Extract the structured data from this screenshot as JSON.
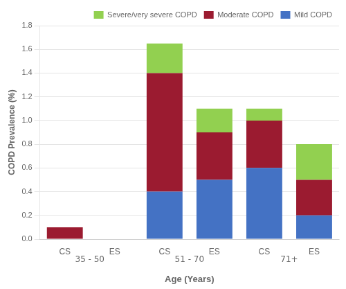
{
  "chart_data": {
    "type": "bar",
    "stacked": true,
    "groups": [
      {
        "label": "35 - 50",
        "categories": [
          "CS",
          "ES"
        ]
      },
      {
        "label": "51 - 70",
        "categories": [
          "CS",
          "ES"
        ]
      },
      {
        "label": "71+",
        "categories": [
          "CS",
          "ES"
        ]
      }
    ],
    "series": [
      {
        "name": "Mild COPD",
        "color": "#4472C4",
        "values": [
          0.0,
          0.0,
          0.4,
          0.5,
          0.6,
          0.2
        ]
      },
      {
        "name": "Moderate COPD",
        "color": "#9B1B30",
        "values": [
          0.1,
          0.0,
          1.0,
          0.4,
          0.4,
          0.3
        ]
      },
      {
        "name": "Severe/very severe COPD",
        "color": "#92D050",
        "values": [
          0.0,
          0.0,
          0.25,
          0.2,
          0.1,
          0.3
        ]
      }
    ],
    "xlabel": "Age (Years)",
    "ylabel": "COPD Prevalence (%)",
    "ylim": [
      0,
      1.8
    ],
    "yticks": [
      {
        "value": 0.0,
        "label": "0.0"
      },
      0.2,
      0.4,
      0.6,
      0.8,
      {
        "value": 1.0,
        "label": "1.0"
      },
      1.2,
      1.4,
      1.6,
      1.8
    ],
    "grid": true,
    "legend": "upper right"
  }
}
